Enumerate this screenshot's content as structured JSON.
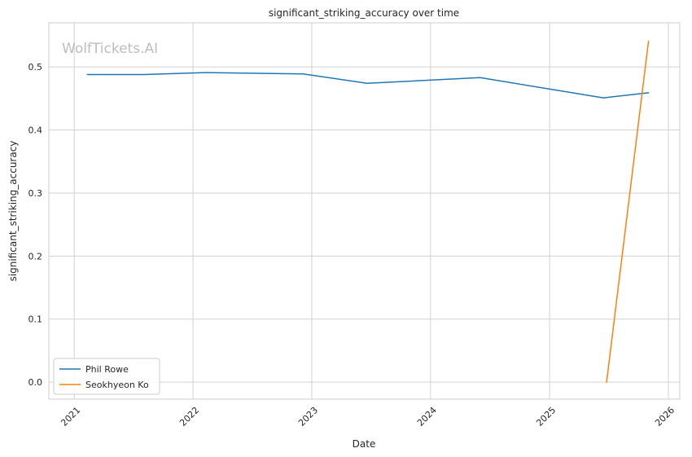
{
  "watermark": "WolfTickets.AI",
  "chart_data": {
    "type": "line",
    "title": "significant_striking_accuracy over time",
    "xlabel": "Date",
    "ylabel": "significant_striking_accuracy",
    "x_axis": "date",
    "xlim": [
      "2020-10-15",
      "2026-02-05"
    ],
    "ylim": [
      -0.027,
      0.57
    ],
    "x_ticks": [
      "2021-01-01",
      "2022-01-01",
      "2023-01-01",
      "2024-01-01",
      "2025-01-01",
      "2026-01-01"
    ],
    "x_tick_labels": [
      "2021",
      "2022",
      "2023",
      "2024",
      "2025",
      "2026"
    ],
    "y_ticks": [
      0.0,
      0.1,
      0.2,
      0.3,
      0.4,
      0.5
    ],
    "y_tick_labels": [
      "0.0",
      "0.1",
      "0.2",
      "0.3",
      "0.4",
      "0.5"
    ],
    "grid": true,
    "legend_position": "lower-left",
    "series": [
      {
        "name": "Phil Rowe",
        "color": "#1f77b4",
        "x": [
          "2021-02-10",
          "2021-08-05",
          "2022-02-05",
          "2022-12-05",
          "2023-06-20",
          "2024-06-01",
          "2025-06-15",
          "2025-11-01"
        ],
        "y": [
          0.488,
          0.488,
          0.491,
          0.489,
          0.474,
          0.483,
          0.451,
          0.459
        ]
      },
      {
        "name": "Seokhyeon Ko",
        "color": "#ff7f0e",
        "x": [
          "2025-06-25",
          "2025-11-01"
        ],
        "y": [
          0.0,
          0.541
        ]
      }
    ]
  }
}
